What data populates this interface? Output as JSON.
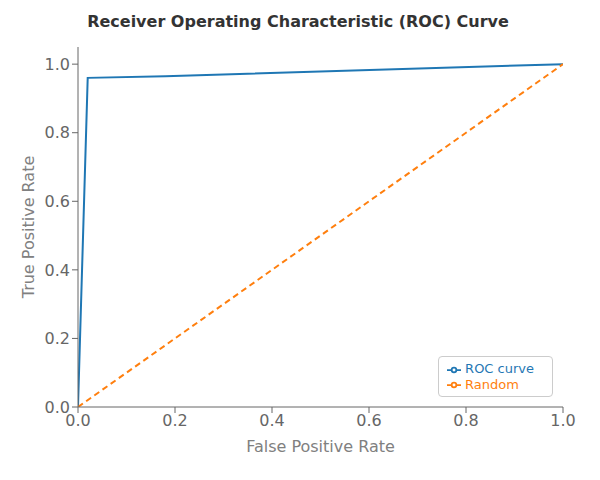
{
  "chart_data": {
    "type": "line",
    "title": "Receiver Operating Characteristic (ROC) Curve",
    "xlabel": "False Positive Rate",
    "ylabel": "True Positive Rate",
    "series": [
      {
        "name": "ROC curve",
        "color": "#1f77b4",
        "line_style": "solid",
        "x": [
          0.0,
          0.02,
          0.18,
          1.0
        ],
        "values": [
          0.0,
          0.96,
          0.965,
          1.0
        ]
      },
      {
        "name": "Random",
        "color": "#ff7f0e",
        "line_style": "dashed",
        "x": [
          0.0,
          1.0
        ],
        "values": [
          0.0,
          1.0
        ]
      }
    ],
    "xlim": [
      0.0,
      1.0
    ],
    "ylim": [
      0.0,
      1.05
    ],
    "xticks": [
      {
        "value": 0.0,
        "label": "0.0"
      },
      0.2,
      0.4,
      0.6,
      0.8,
      {
        "value": 1.0,
        "label": "1.0"
      }
    ],
    "yticks": [
      {
        "value": 0.0,
        "label": "0.0"
      },
      0.2,
      0.4,
      0.6,
      0.8,
      {
        "value": 1.0,
        "label": "1.0"
      }
    ],
    "legend": "lower right",
    "grid": false
  }
}
